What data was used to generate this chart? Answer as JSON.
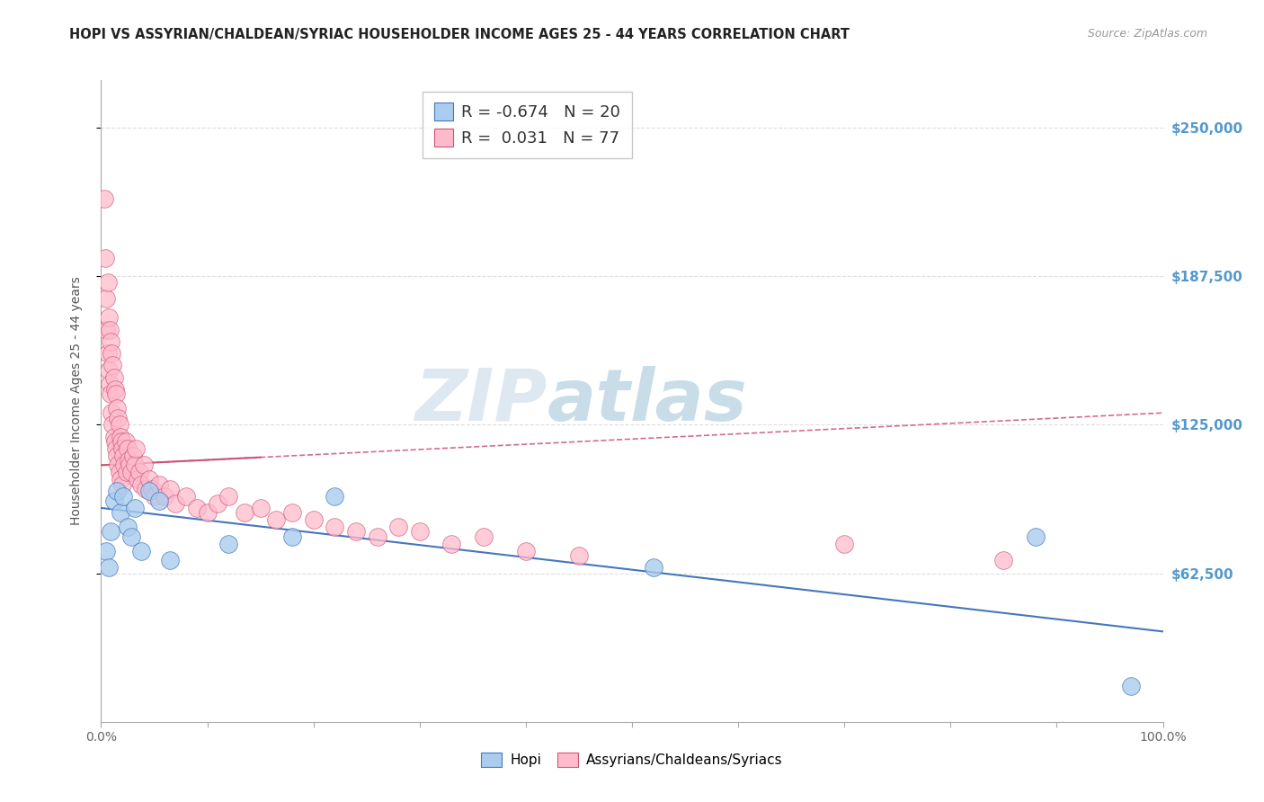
{
  "title": "HOPI VS ASSYRIAN/CHALDEAN/SYRIAC HOUSEHOLDER INCOME AGES 25 - 44 YEARS CORRELATION CHART",
  "source": "Source: ZipAtlas.com",
  "ylabel": "Householder Income Ages 25 - 44 years",
  "xlim": [
    0.0,
    1.0
  ],
  "ylim": [
    0,
    270000
  ],
  "yticks": [
    62500,
    125000,
    187500,
    250000
  ],
  "ytick_labels": [
    "$62,500",
    "$125,000",
    "$187,500",
    "$250,000"
  ],
  "xtick_labels_show": [
    "0.0%",
    "100.0%"
  ],
  "hopi_R": -0.674,
  "hopi_N": 20,
  "assyrian_R": 0.031,
  "assyrian_N": 77,
  "hopi_color": "#aaccee",
  "assyrian_color": "#ffbbcc",
  "hopi_line_color": "#4477bb",
  "assyrian_line_color": "#cc5577",
  "watermark_top": "ZIP",
  "watermark_bottom": "atlas",
  "watermark_color_zip": "#dde8f0",
  "watermark_color_atlas": "#c8dde8",
  "background_color": "#ffffff",
  "grid_color": "#dddddd",
  "title_color": "#222222",
  "right_label_color": "#5599cc",
  "legend_border_color": "#bbbbbb",
  "hopi_x": [
    0.005,
    0.007,
    0.009,
    0.012,
    0.015,
    0.018,
    0.021,
    0.025,
    0.028,
    0.032,
    0.038,
    0.045,
    0.055,
    0.065,
    0.12,
    0.18,
    0.22,
    0.52,
    0.88,
    0.97
  ],
  "hopi_y": [
    72000,
    65000,
    80000,
    93000,
    97000,
    88000,
    95000,
    82000,
    78000,
    90000,
    72000,
    97000,
    93000,
    68000,
    75000,
    78000,
    95000,
    65000,
    78000,
    15000
  ],
  "assyrian_x": [
    0.003,
    0.004,
    0.005,
    0.005,
    0.006,
    0.006,
    0.007,
    0.007,
    0.008,
    0.008,
    0.009,
    0.009,
    0.01,
    0.01,
    0.011,
    0.011,
    0.012,
    0.012,
    0.013,
    0.013,
    0.014,
    0.014,
    0.015,
    0.015,
    0.016,
    0.016,
    0.017,
    0.017,
    0.018,
    0.018,
    0.019,
    0.02,
    0.02,
    0.021,
    0.022,
    0.023,
    0.024,
    0.025,
    0.026,
    0.027,
    0.028,
    0.03,
    0.032,
    0.033,
    0.034,
    0.036,
    0.038,
    0.04,
    0.042,
    0.045,
    0.048,
    0.05,
    0.055,
    0.06,
    0.065,
    0.07,
    0.08,
    0.09,
    0.1,
    0.11,
    0.12,
    0.135,
    0.15,
    0.165,
    0.18,
    0.2,
    0.22,
    0.24,
    0.26,
    0.28,
    0.3,
    0.33,
    0.36,
    0.4,
    0.45,
    0.7,
    0.85
  ],
  "assyrian_y": [
    220000,
    195000,
    178000,
    165000,
    185000,
    155000,
    170000,
    148000,
    165000,
    142000,
    160000,
    138000,
    155000,
    130000,
    150000,
    125000,
    145000,
    120000,
    140000,
    118000,
    138000,
    115000,
    132000,
    112000,
    128000,
    108000,
    125000,
    105000,
    120000,
    102000,
    118000,
    115000,
    100000,
    112000,
    108000,
    118000,
    105000,
    115000,
    110000,
    108000,
    105000,
    112000,
    108000,
    115000,
    102000,
    105000,
    100000,
    108000,
    98000,
    102000,
    98000,
    95000,
    100000,
    95000,
    98000,
    92000,
    95000,
    90000,
    88000,
    92000,
    95000,
    88000,
    90000,
    85000,
    88000,
    85000,
    82000,
    80000,
    78000,
    82000,
    80000,
    75000,
    78000,
    72000,
    70000,
    75000,
    68000
  ],
  "hopi_trend_x": [
    0.0,
    1.0
  ],
  "hopi_trend_y": [
    90000,
    38000
  ],
  "assyrian_trend_x": [
    0.0,
    1.0
  ],
  "assyrian_trend_y": [
    108000,
    130000
  ]
}
